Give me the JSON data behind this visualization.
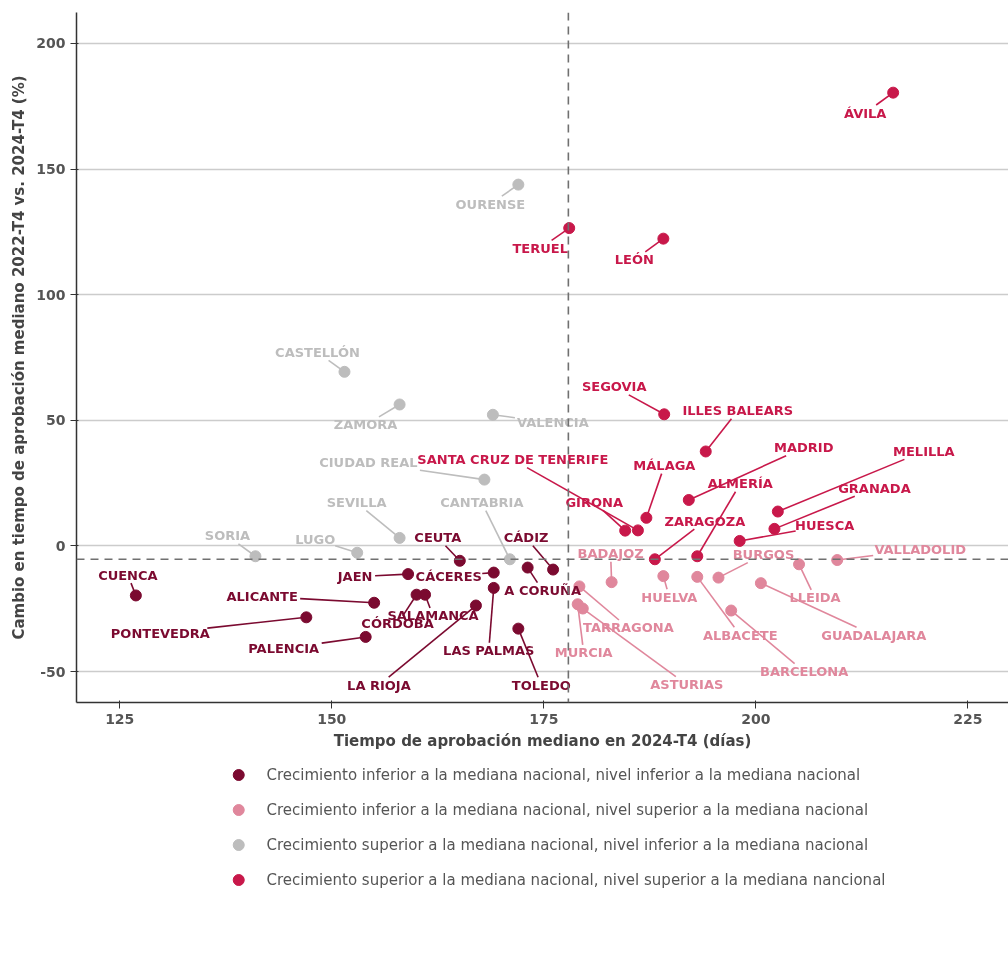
{
  "chart_data": {
    "type": "scatter",
    "xlabel": "Tiempo de aprobación mediano en 2024-T4 (días)",
    "ylabel": "Cambio en tiempo de aprobación mediano 2022-T4 vs. 2024-T4 (%)",
    "xlim": [
      119.9,
      229.8
    ],
    "ylim": [
      -62.3,
      212.3
    ],
    "xticks": [
      125,
      150,
      175,
      200,
      225
    ],
    "yticks": [
      -50,
      0,
      50,
      100,
      150,
      200
    ],
    "grid": "y",
    "legend": "bottom",
    "marker": "circle",
    "ref_lines": [
      {
        "axis": "x",
        "value": 177.9,
        "color": "#707070",
        "line_style": "dashed"
      },
      {
        "axis": "y",
        "value": -5.3,
        "color": "#707070",
        "line_style": "dashed"
      }
    ],
    "series": [
      {
        "name": "Crecimiento inferior a la mediana nacional, nivel inferior a la mediana nacional",
        "color": "#7b0a30",
        "x": [
          126.9,
          147.0,
          154.0,
          155.0,
          160.0,
          161.0,
          159.0,
          169.1,
          165.1,
          173.1,
          176.1,
          169.1,
          167.0,
          172.0
        ],
        "values": [
          -19.7,
          -28.4,
          -36.2,
          -22.6,
          -19.4,
          -19.4,
          -11.2,
          -10.6,
          -5.9,
          -8.6,
          -9.4,
          -16.7,
          -23.7,
          -32.9
        ]
      },
      {
        "name": "Crecimiento inferior a la mediana nacional, nivel superior a la mediana nacional",
        "color": "#e0879c",
        "x": [
          179.2,
          179.0,
          179.6,
          183.0,
          189.1,
          193.1,
          197.1,
          195.6,
          205.1,
          200.6,
          209.6
        ],
        "values": [
          -16.1,
          -23.2,
          -24.9,
          -14.4,
          -12.0,
          -12.3,
          -25.7,
          -12.6,
          -7.3,
          -14.8,
          -5.6
        ]
      },
      {
        "name": "Crecimiento superior a la mediana nacional, nivel inferior a la mediana nacional",
        "color": "#bdbdbd",
        "x": [
          172.0,
          151.5,
          158.0,
          169.0,
          168.0,
          158.0,
          171.0,
          141.0,
          153.0
        ],
        "values": [
          143.8,
          69.3,
          56.3,
          52.2,
          26.4,
          3.2,
          -5.3,
          -4.1,
          -2.7
        ]
      },
      {
        "name": "Crecimiento superior a la mediana nacional, nivel superior a la mediana nancional",
        "color": "#c8184a",
        "x": [
          216.2,
          178.0,
          189.1,
          189.2,
          194.1,
          192.1,
          187.1,
          184.6,
          186.1,
          202.6,
          202.2,
          198.1,
          188.1,
          193.1
        ],
        "values": [
          180.4,
          126.5,
          122.3,
          52.4,
          37.6,
          18.3,
          11.2,
          6.1,
          6.2,
          13.7,
          6.8,
          2.0,
          -5.3,
          -4.1
        ]
      }
    ],
    "annotations": [
      {
        "text": "CUENCA",
        "x": 126.9,
        "y": -19.7
      },
      {
        "text": "PONTEVEDRA",
        "x": 147.0,
        "y": -28.4
      },
      {
        "text": "PALENCIA",
        "x": 154.0,
        "y": -36.2
      },
      {
        "text": "ALICANTE",
        "x": 155.0,
        "y": -22.6
      },
      {
        "text": "CÓRDOBA",
        "x": 160.0,
        "y": -19.4
      },
      {
        "text": "SALAMANCA",
        "x": 161.0,
        "y": -19.4
      },
      {
        "text": "JAEN",
        "x": 159.0,
        "y": -11.2
      },
      {
        "text": "CÁCERES",
        "x": 169.1,
        "y": -10.6
      },
      {
        "text": "CEUTA",
        "x": 165.1,
        "y": -5.9
      },
      {
        "text": "A CORUÑA",
        "x": 173.1,
        "y": -8.6
      },
      {
        "text": "CÁDIZ",
        "x": 176.1,
        "y": -9.4
      },
      {
        "text": "LAS PALMAS",
        "x": 169.1,
        "y": -16.7
      },
      {
        "text": "LA RIOJA",
        "x": 167.0,
        "y": -23.7
      },
      {
        "text": "TOLEDO",
        "x": 172.0,
        "y": -32.9
      },
      {
        "text": "TARRAGONA",
        "x": 179.2,
        "y": -16.1
      },
      {
        "text": "MURCIA",
        "x": 179.0,
        "y": -23.2
      },
      {
        "text": "ASTURIAS",
        "x": 179.6,
        "y": -24.9
      },
      {
        "text": "BADAJOZ",
        "x": 183.0,
        "y": -14.4
      },
      {
        "text": "HUELVA",
        "x": 189.1,
        "y": -12.0
      },
      {
        "text": "ALBACETE",
        "x": 193.1,
        "y": -12.3
      },
      {
        "text": "BARCELONA",
        "x": 197.1,
        "y": -25.7
      },
      {
        "text": "BURGOS",
        "x": 195.6,
        "y": -12.6
      },
      {
        "text": "LLEIDA",
        "x": 205.1,
        "y": -7.3
      },
      {
        "text": "GUADALAJARA",
        "x": 200.6,
        "y": -14.8
      },
      {
        "text": "VALLADOLID",
        "x": 209.6,
        "y": -5.6
      },
      {
        "text": "OURENSE",
        "x": 172.0,
        "y": 143.8
      },
      {
        "text": "CASTELLÓN",
        "x": 151.5,
        "y": 69.3
      },
      {
        "text": "ZAMORA",
        "x": 158.0,
        "y": 56.3
      },
      {
        "text": "VALENCIA",
        "x": 169.0,
        "y": 52.2
      },
      {
        "text": "CIUDAD REAL",
        "x": 168.0,
        "y": 26.4
      },
      {
        "text": "SEVILLA",
        "x": 158.0,
        "y": 3.2
      },
      {
        "text": "CANTABRIA",
        "x": 171.0,
        "y": -5.3
      },
      {
        "text": "SORIA",
        "x": 141.0,
        "y": -4.1
      },
      {
        "text": "LUGO",
        "x": 153.0,
        "y": -2.7
      },
      {
        "text": "ÁVILA",
        "x": 216.2,
        "y": 180.4
      },
      {
        "text": "TERUEL",
        "x": 178.0,
        "y": 126.5
      },
      {
        "text": "LEÓN",
        "x": 189.1,
        "y": 122.3
      },
      {
        "text": "SEGOVIA",
        "x": 189.2,
        "y": 52.4
      },
      {
        "text": "ILLES BALEARS",
        "x": 194.1,
        "y": 37.6
      },
      {
        "text": "MADRID",
        "x": 192.1,
        "y": 18.3
      },
      {
        "text": "MÁLAGA",
        "x": 187.1,
        "y": 11.2
      },
      {
        "text": "GIRONA",
        "x": 184.6,
        "y": 6.1
      },
      {
        "text": "SANTA CRUZ DE TENERIFE",
        "x": 186.1,
        "y": 6.2
      },
      {
        "text": "MELILLA",
        "x": 202.6,
        "y": 13.7
      },
      {
        "text": "GRANADA",
        "x": 202.2,
        "y": 6.8
      },
      {
        "text": "HUESCA",
        "x": 198.1,
        "y": 2.0
      },
      {
        "text": "ZARAGOZA",
        "x": 188.1,
        "y": -5.3
      },
      {
        "text": "ALMERÍA",
        "x": 193.1,
        "y": -4.1
      }
    ]
  }
}
